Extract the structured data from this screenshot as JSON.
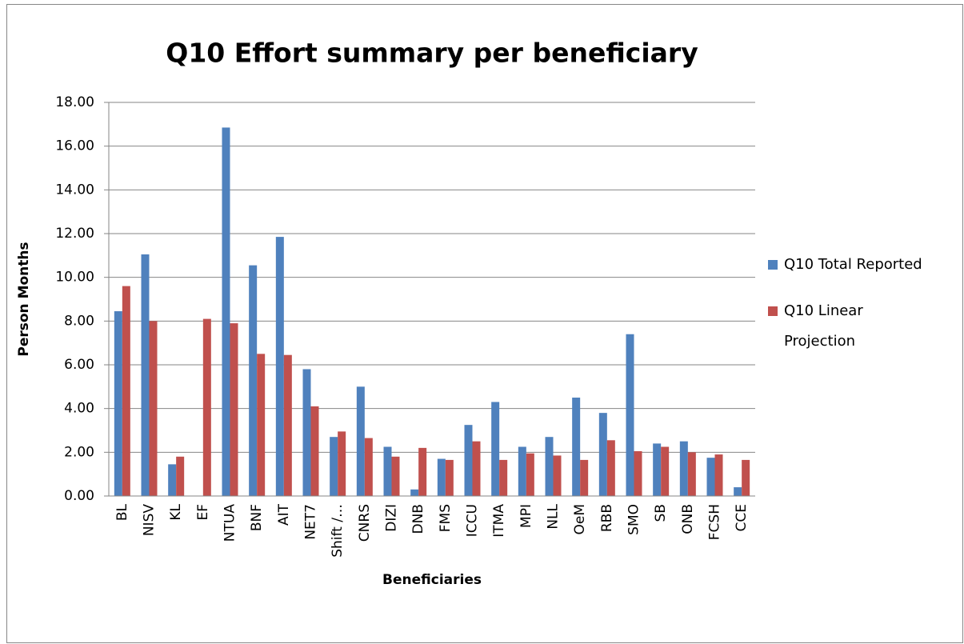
{
  "chart_data": {
    "type": "bar",
    "title": "Q10 Effort summary per beneficiary",
    "xlabel": "Beneficiaries",
    "ylabel": "Person Months",
    "categories": [
      "BL",
      "NISV",
      "KL",
      "EF",
      "NTUA",
      "BNF",
      "AIT",
      "NET7",
      "Shift /…",
      "CNRS",
      "DIZI",
      "DNB",
      "FMS",
      "ICCU",
      "ITMA",
      "MPI",
      "NLL",
      "OeM",
      "RBB",
      "SMO",
      "SB",
      "ONB",
      "FCSH",
      "CCE"
    ],
    "series": [
      {
        "name": "Q10 Total Reported",
        "color": "#4f81bd",
        "values": [
          8.45,
          11.05,
          1.45,
          0,
          16.85,
          10.55,
          11.85,
          5.8,
          2.7,
          5.0,
          2.25,
          0.3,
          1.7,
          3.25,
          4.3,
          2.25,
          2.7,
          4.5,
          3.8,
          7.4,
          2.4,
          2.5,
          1.75,
          0.4
        ]
      },
      {
        "name": "Q10 Linear Projection",
        "color": "#c0504d",
        "values": [
          9.6,
          8.0,
          1.8,
          8.1,
          7.9,
          6.5,
          6.45,
          4.1,
          2.95,
          2.65,
          1.8,
          2.2,
          1.65,
          2.5,
          1.65,
          1.95,
          1.85,
          1.65,
          2.55,
          2.05,
          2.25,
          2.0,
          1.9,
          1.65
        ]
      }
    ],
    "ylim": [
      0,
      18
    ],
    "yticks": [
      {
        "value": 0,
        "label": "0.00"
      },
      {
        "value": 2,
        "label": "2.00"
      },
      {
        "value": 4,
        "label": "4.00"
      },
      {
        "value": 6,
        "label": "6.00"
      },
      {
        "value": 8,
        "label": "8.00"
      },
      {
        "value": 10,
        "label": "10.00"
      },
      {
        "value": 12,
        "label": "12.00"
      },
      {
        "value": 14,
        "label": "14.00"
      },
      {
        "value": 16,
        "label": "16.00"
      },
      {
        "value": 18,
        "label": "18.00"
      }
    ],
    "grid": true,
    "legend": "right"
  }
}
